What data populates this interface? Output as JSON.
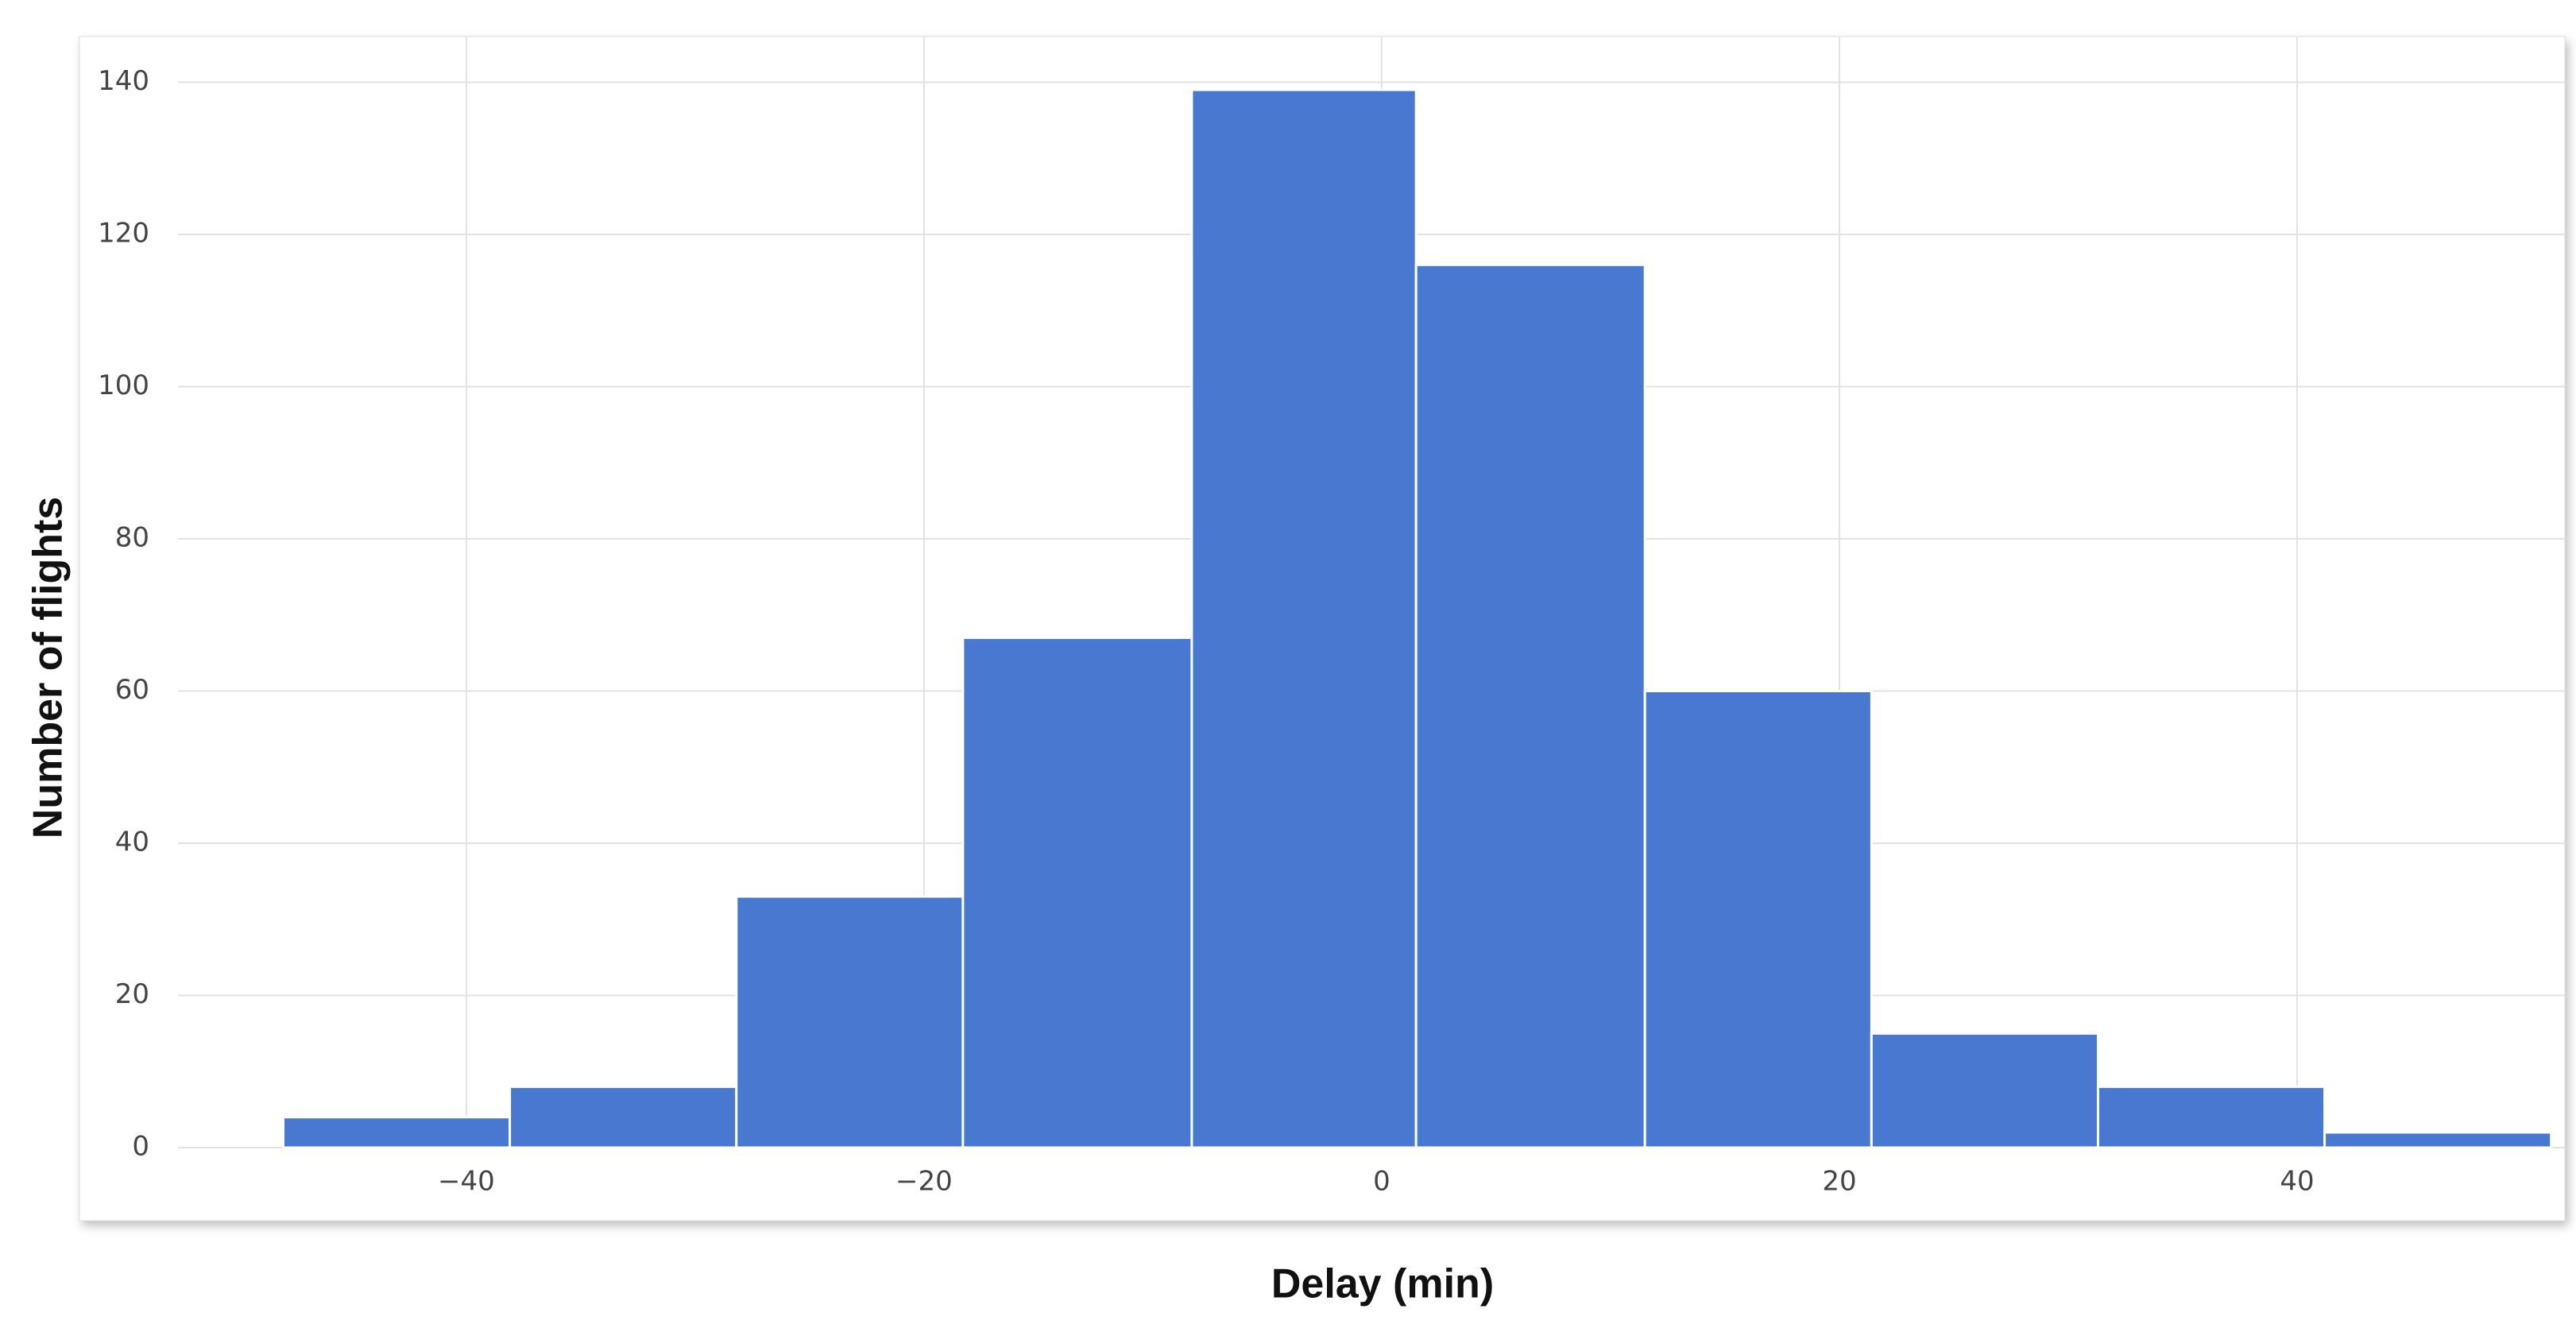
{
  "chart_data": {
    "type": "histogram",
    "x_label": "Delay (min)",
    "y_label": "Number of flights",
    "bins": [
      -48,
      -38.1,
      -28.2,
      -18.3,
      -8.3,
      1.5,
      11.5,
      21.4,
      31.3,
      41.2,
      51.1
    ],
    "values": [
      4,
      8,
      33,
      67,
      139,
      116,
      60,
      15,
      8,
      2
    ],
    "color": "#4878cf",
    "xlim": [
      -52.6,
      51.7
    ],
    "xticks": [
      {
        "value": -40,
        "label": "−40"
      },
      {
        "value": -20,
        "label": "−20"
      },
      0,
      20,
      40
    ],
    "ylim": [
      0,
      146
    ],
    "yticks": [
      0,
      20,
      40,
      60,
      80,
      100,
      120,
      140
    ],
    "grid": true
  }
}
